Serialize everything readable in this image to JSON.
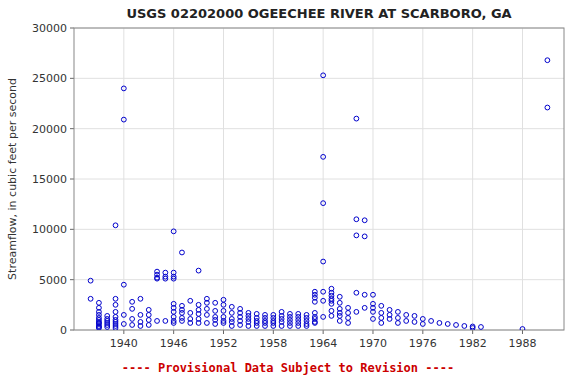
{
  "chart_data": {
    "type": "scatter",
    "title": "USGS 02202000 OGEECHEE RIVER AT SCARBORO, GA",
    "ylabel": "Streamflow, in cubic feet per second",
    "subtitle": "---- Provisional Data Subject to Revision ----",
    "color": "#0000cc",
    "marker": "circle",
    "grid": true,
    "xlim": [
      1934,
      1993
    ],
    "ylim": [
      0,
      30000
    ],
    "xticks": [
      1940,
      1946,
      1952,
      1958,
      1964,
      1970,
      1976,
      1982,
      1988
    ],
    "yticks": [
      0,
      5000,
      10000,
      15000,
      20000,
      25000,
      30000
    ],
    "x": [
      1936,
      1936,
      1937,
      1937,
      1937,
      1937,
      1937,
      1937,
      1937,
      1937,
      1937,
      1937,
      1937,
      1937,
      1938,
      1938,
      1938,
      1938,
      1938,
      1938,
      1939,
      1939,
      1939,
      1939,
      1939,
      1939,
      1939,
      1939,
      1939,
      1939,
      1940,
      1940,
      1940,
      1940,
      1940,
      1941,
      1941,
      1941,
      1941,
      1942,
      1942,
      1942,
      1942,
      1943,
      1943,
      1943,
      1943,
      1944,
      1944,
      1944,
      1944,
      1944,
      1945,
      1945,
      1945,
      1945,
      1946,
      1946,
      1946,
      1946,
      1946,
      1946,
      1946,
      1946,
      1946,
      1946,
      1947,
      1947,
      1947,
      1947,
      1947,
      1947,
      1948,
      1948,
      1948,
      1948,
      1949,
      1949,
      1949,
      1949,
      1949,
      1949,
      1950,
      1950,
      1950,
      1950,
      1950,
      1951,
      1951,
      1951,
      1951,
      1951,
      1952,
      1952,
      1952,
      1952,
      1952,
      1952,
      1953,
      1953,
      1953,
      1953,
      1953,
      1954,
      1954,
      1954,
      1954,
      1954,
      1955,
      1955,
      1955,
      1955,
      1955,
      1956,
      1956,
      1956,
      1956,
      1956,
      1957,
      1957,
      1957,
      1957,
      1957,
      1958,
      1958,
      1958,
      1958,
      1958,
      1959,
      1959,
      1959,
      1959,
      1959,
      1960,
      1960,
      1960,
      1960,
      1960,
      1961,
      1961,
      1961,
      1961,
      1961,
      1962,
      1962,
      1962,
      1962,
      1962,
      1963,
      1963,
      1963,
      1963,
      1963,
      1963,
      1963,
      1963,
      1963,
      1964,
      1964,
      1964,
      1964,
      1964,
      1964,
      1964,
      1965,
      1965,
      1965,
      1965,
      1965,
      1965,
      1965,
      1965,
      1966,
      1966,
      1966,
      1966,
      1966,
      1966,
      1967,
      1967,
      1967,
      1967,
      1968,
      1968,
      1968,
      1968,
      1968,
      1969,
      1969,
      1969,
      1969,
      1970,
      1970,
      1970,
      1970,
      1970,
      1971,
      1971,
      1971,
      1971,
      1972,
      1972,
      1972,
      1973,
      1973,
      1973,
      1974,
      1974,
      1975,
      1975,
      1976,
      1976,
      1977,
      1978,
      1979,
      1980,
      1981,
      1982,
      1982,
      1983,
      1988,
      1991,
      1991
    ],
    "values": [
      4900,
      3100,
      2700,
      2200,
      1800,
      1500,
      1200,
      1000,
      800,
      700,
      600,
      400,
      300,
      200,
      1400,
      1100,
      900,
      700,
      500,
      300,
      10400,
      3100,
      2500,
      1800,
      1300,
      1000,
      800,
      600,
      400,
      200,
      20900,
      24000,
      4500,
      1500,
      600,
      2800,
      2100,
      1100,
      500,
      3100,
      1500,
      800,
      400,
      2000,
      1500,
      1000,
      500,
      5800,
      5500,
      5200,
      5100,
      900,
      5700,
      5300,
      5100,
      900,
      9800,
      5700,
      5300,
      5100,
      2600,
      2200,
      1800,
      1300,
      900,
      700,
      7700,
      2400,
      2000,
      1700,
      1200,
      900,
      2900,
      1700,
      1100,
      700,
      5900,
      2500,
      2000,
      1600,
      1100,
      700,
      3100,
      2700,
      2100,
      1500,
      700,
      2700,
      1900,
      1300,
      1000,
      600,
      3000,
      2500,
      1900,
      1300,
      900,
      700,
      2300,
      1700,
      1100,
      800,
      400,
      2100,
      1700,
      1300,
      900,
      500,
      1700,
      1400,
      1100,
      800,
      400,
      1600,
      1200,
      900,
      700,
      400,
      1500,
      1200,
      900,
      700,
      400,
      1500,
      1200,
      900,
      700,
      400,
      1800,
      1400,
      1100,
      800,
      400,
      1600,
      1300,
      1000,
      700,
      400,
      1600,
      1300,
      1000,
      700,
      400,
      1500,
      1200,
      900,
      600,
      400,
      3800,
      3500,
      3200,
      2800,
      1700,
      1300,
      1100,
      800,
      700,
      25300,
      17200,
      12600,
      6800,
      3800,
      2900,
      1300,
      4100,
      3700,
      3400,
      3100,
      2900,
      2600,
      1900,
      1400,
      3300,
      2700,
      2100,
      1700,
      1400,
      900,
      2200,
      1700,
      1200,
      700,
      21000,
      11000,
      9400,
      3700,
      1800,
      10900,
      9300,
      3500,
      2200,
      3500,
      2600,
      2200,
      1800,
      1100,
      2400,
      1700,
      1200,
      700,
      2000,
      1500,
      1100,
      1800,
      1200,
      700,
      1500,
      900,
      1400,
      800,
      1100,
      600,
      900,
      700,
      600,
      500,
      400,
      350,
      200,
      300,
      100,
      26800,
      22100
    ]
  }
}
